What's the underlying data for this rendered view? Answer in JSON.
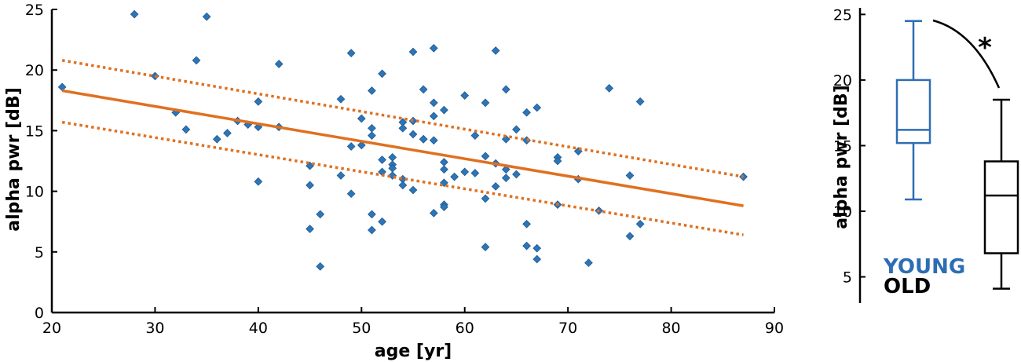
{
  "colors": {
    "points": "#2e75b6",
    "fit": "#e07020",
    "young": "#2e6db4",
    "old": "#000000"
  },
  "chart_data": [
    {
      "type": "scatter",
      "xlabel": "age [yr]",
      "ylabel": "alpha pwr [dB]",
      "xlim": [
        20,
        90
      ],
      "ylim": [
        0,
        25
      ],
      "xticks": [
        20,
        30,
        40,
        50,
        60,
        70,
        80,
        90
      ],
      "yticks": [
        0,
        5,
        10,
        15,
        20,
        25
      ],
      "points": [
        [
          21,
          18.6
        ],
        [
          28,
          24.6
        ],
        [
          30,
          19.5
        ],
        [
          32,
          16.5
        ],
        [
          33,
          15.1
        ],
        [
          34,
          20.8
        ],
        [
          35,
          24.4
        ],
        [
          36,
          14.3
        ],
        [
          37,
          14.8
        ],
        [
          38,
          15.8
        ],
        [
          39,
          15.5
        ],
        [
          40,
          17.4
        ],
        [
          40,
          15.3
        ],
        [
          40,
          10.8
        ],
        [
          42,
          20.5
        ],
        [
          42,
          15.3
        ],
        [
          45,
          12.1
        ],
        [
          45,
          10.5
        ],
        [
          45,
          6.9
        ],
        [
          46,
          8.1
        ],
        [
          46,
          3.8
        ],
        [
          48,
          17.6
        ],
        [
          48,
          11.3
        ],
        [
          49,
          21.4
        ],
        [
          49,
          13.7
        ],
        [
          49,
          9.8
        ],
        [
          50,
          16.0
        ],
        [
          50,
          13.8
        ],
        [
          51,
          18.3
        ],
        [
          51,
          15.2
        ],
        [
          51,
          14.6
        ],
        [
          51,
          8.1
        ],
        [
          51,
          6.8
        ],
        [
          52,
          19.7
        ],
        [
          52,
          12.6
        ],
        [
          52,
          11.6
        ],
        [
          52,
          7.5
        ],
        [
          53,
          12.8
        ],
        [
          53,
          12.2
        ],
        [
          53,
          11.9
        ],
        [
          53,
          11.3
        ],
        [
          54,
          15.7
        ],
        [
          54,
          15.2
        ],
        [
          54,
          11.0
        ],
        [
          54,
          10.5
        ],
        [
          55,
          21.5
        ],
        [
          55,
          15.8
        ],
        [
          55,
          14.7
        ],
        [
          55,
          10.1
        ],
        [
          56,
          18.4
        ],
        [
          56,
          14.3
        ],
        [
          56,
          14.3
        ],
        [
          57,
          21.8
        ],
        [
          57,
          17.3
        ],
        [
          57,
          16.2
        ],
        [
          57,
          14.2
        ],
        [
          57,
          8.2
        ],
        [
          58,
          16.7
        ],
        [
          58,
          12.4
        ],
        [
          58,
          11.8
        ],
        [
          58,
          10.7
        ],
        [
          58,
          8.9
        ],
        [
          58,
          8.7
        ],
        [
          59,
          11.2
        ],
        [
          60,
          17.9
        ],
        [
          60,
          11.6
        ],
        [
          61,
          14.6
        ],
        [
          61,
          11.5
        ],
        [
          62,
          17.3
        ],
        [
          62,
          12.9
        ],
        [
          62,
          9.4
        ],
        [
          62,
          5.4
        ],
        [
          63,
          21.6
        ],
        [
          63,
          12.3
        ],
        [
          63,
          10.4
        ],
        [
          64,
          18.4
        ],
        [
          64,
          14.3
        ],
        [
          64,
          11.8
        ],
        [
          64,
          11.1
        ],
        [
          65,
          15.1
        ],
        [
          65,
          11.4
        ],
        [
          66,
          16.5
        ],
        [
          66,
          14.2
        ],
        [
          66,
          7.3
        ],
        [
          66,
          5.5
        ],
        [
          67,
          16.9
        ],
        [
          67,
          5.3
        ],
        [
          67,
          4.4
        ],
        [
          69,
          12.8
        ],
        [
          69,
          12.5
        ],
        [
          69,
          8.9
        ],
        [
          71,
          13.3
        ],
        [
          71,
          11.0
        ],
        [
          72,
          4.1
        ],
        [
          73,
          8.4
        ],
        [
          74,
          18.5
        ],
        [
          76,
          11.3
        ],
        [
          76,
          6.3
        ],
        [
          77,
          17.4
        ],
        [
          77,
          7.3
        ],
        [
          87,
          11.2
        ]
      ],
      "fit_line": {
        "x": [
          21,
          87
        ],
        "y": [
          18.3,
          8.8
        ]
      },
      "ci_upper": {
        "x": [
          21,
          87
        ],
        "y": [
          20.8,
          11.2
        ]
      },
      "ci_lower": {
        "x": [
          21,
          87
        ],
        "y": [
          15.7,
          6.4
        ]
      }
    },
    {
      "type": "box",
      "ylabel": "alpha pwr [dB]",
      "ylim": [
        3,
        25.5
      ],
      "yticks": [
        5,
        10,
        15,
        20,
        25
      ],
      "groups": [
        {
          "name": "YOUNG",
          "min": 10.9,
          "q1": 15.2,
          "median": 16.2,
          "q3": 20.0,
          "max": 24.5
        },
        {
          "name": "OLD",
          "min": 4.1,
          "q1": 6.8,
          "median": 11.2,
          "q3": 13.8,
          "max": 18.5
        }
      ],
      "significance": "*"
    }
  ]
}
